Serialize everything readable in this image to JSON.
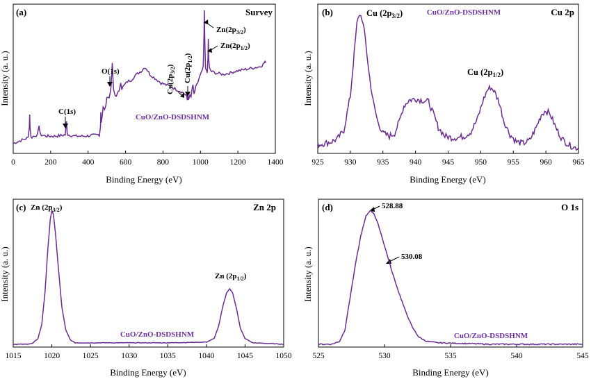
{
  "chart_data": [
    {
      "type": "line",
      "panel_label": "(a)",
      "title": "Survey",
      "sample_label": "CuO/ZnO-DSDSHNM",
      "xlabel": "Binding Energy (eV)",
      "ylabel": "Intensity (a. u.)",
      "xlim": [
        0,
        1400
      ],
      "xticks": [
        "0",
        "200",
        "400",
        "600",
        "800",
        "1000",
        "1200",
        "1400"
      ],
      "series": [
        {
          "color": "#6a2c91",
          "points": [
            [
              0,
              0.07
            ],
            [
              20,
              0.08
            ],
            [
              40,
              0.09
            ],
            [
              60,
              0.1
            ],
            [
              80,
              0.11
            ],
            [
              86,
              0.19
            ],
            [
              88,
              0.27
            ],
            [
              90,
              0.19
            ],
            [
              95,
              0.11
            ],
            [
              110,
              0.12
            ],
            [
              130,
              0.13
            ],
            [
              136,
              0.17
            ],
            [
              138,
              0.2
            ],
            [
              140,
              0.17
            ],
            [
              145,
              0.13
            ],
            [
              180,
              0.12
            ],
            [
              220,
              0.12
            ],
            [
              260,
              0.125
            ],
            [
              278,
              0.13
            ],
            [
              282,
              0.19
            ],
            [
              285,
              0.22
            ],
            [
              288,
              0.15
            ],
            [
              292,
              0.13
            ],
            [
              330,
              0.12
            ],
            [
              380,
              0.12
            ],
            [
              420,
              0.125
            ],
            [
              460,
              0.13
            ],
            [
              466,
              0.19
            ],
            [
              468,
              0.29
            ],
            [
              470,
              0.22
            ],
            [
              476,
              0.27
            ],
            [
              480,
              0.32
            ],
            [
              488,
              0.3
            ],
            [
              495,
              0.34
            ],
            [
              500,
              0.38
            ],
            [
              506,
              0.4
            ],
            [
              512,
              0.39
            ],
            [
              518,
              0.42
            ],
            [
              522,
              0.46
            ],
            [
              526,
              0.55
            ],
            [
              529,
              0.62
            ],
            [
              532,
              0.54
            ],
            [
              536,
              0.44
            ],
            [
              545,
              0.4
            ],
            [
              556,
              0.41
            ],
            [
              566,
              0.44
            ],
            [
              574,
              0.5
            ],
            [
              580,
              0.45
            ],
            [
              590,
              0.47
            ],
            [
              610,
              0.5
            ],
            [
              630,
              0.51
            ],
            [
              650,
              0.54
            ],
            [
              670,
              0.56
            ],
            [
              690,
              0.58
            ],
            [
              700,
              0.6
            ],
            [
              712,
              0.59
            ],
            [
              730,
              0.55
            ],
            [
              750,
              0.53
            ],
            [
              770,
              0.51
            ],
            [
              790,
              0.49
            ],
            [
              810,
              0.48
            ],
            [
              830,
              0.47
            ],
            [
              850,
              0.46
            ],
            [
              870,
              0.445
            ],
            [
              890,
              0.435
            ],
            [
              910,
              0.42
            ],
            [
              925,
              0.4
            ],
            [
              930,
              0.37
            ],
            [
              933,
              0.42
            ],
            [
              936,
              0.38
            ],
            [
              944,
              0.4
            ],
            [
              950,
              0.39
            ],
            [
              955,
              0.45
            ],
            [
              960,
              0.47
            ],
            [
              966,
              0.41
            ],
            [
              975,
              0.46
            ],
            [
              985,
              0.49
            ],
            [
              995,
              0.53
            ],
            [
              1005,
              0.56
            ],
            [
              1015,
              0.6
            ],
            [
              1019,
              0.82
            ],
            [
              1021,
              0.99
            ],
            [
              1023,
              0.8
            ],
            [
              1027,
              0.6
            ],
            [
              1032,
              0.57
            ],
            [
              1036,
              0.56
            ],
            [
              1040,
              0.66
            ],
            [
              1042,
              0.8
            ],
            [
              1044,
              0.66
            ],
            [
              1048,
              0.59
            ],
            [
              1060,
              0.57
            ],
            [
              1080,
              0.56
            ],
            [
              1100,
              0.555
            ],
            [
              1120,
              0.55
            ],
            [
              1140,
              0.555
            ],
            [
              1160,
              0.56
            ],
            [
              1180,
              0.57
            ],
            [
              1200,
              0.575
            ],
            [
              1220,
              0.58
            ],
            [
              1240,
              0.585
            ],
            [
              1260,
              0.59
            ],
            [
              1280,
              0.595
            ],
            [
              1300,
              0.6
            ],
            [
              1320,
              0.605
            ],
            [
              1335,
              0.62
            ],
            [
              1345,
              0.64
            ],
            [
              1350,
              0.63
            ]
          ]
        }
      ],
      "annotations": [
        {
          "text": "C(1s)",
          "x": 285
        },
        {
          "text": "O(1s)",
          "x": 530
        },
        {
          "text": "Cu(2p3/2)",
          "x": 933
        },
        {
          "text": "Cu(2p1/2)",
          "x": 953
        },
        {
          "text": "Zn(2p3/2)",
          "x": 1021
        },
        {
          "text": "Zn(2p1/2)",
          "x": 1044
        }
      ]
    },
    {
      "type": "line",
      "panel_label": "(b)",
      "title": "Cu 2p",
      "sample_label": "CuO/ZnO-DSDSHNM",
      "xlabel": "Binding Energy (eV)",
      "ylabel": "Intensity (a. u.)",
      "xlim": [
        925,
        965
      ],
      "xticks": [
        "925",
        "930",
        "935",
        "940",
        "945",
        "950",
        "955",
        "960",
        "965"
      ],
      "series": [
        {
          "color": "#6a2c91",
          "points": [
            [
              925.0,
              0.06
            ],
            [
              926.0,
              0.07
            ],
            [
              927.0,
              0.08
            ],
            [
              928.0,
              0.1
            ],
            [
              929.0,
              0.16
            ],
            [
              930.0,
              0.4
            ],
            [
              930.6,
              0.7
            ],
            [
              931.0,
              0.9
            ],
            [
              931.4,
              0.97
            ],
            [
              931.8,
              0.94
            ],
            [
              932.3,
              0.8
            ],
            [
              932.8,
              0.58
            ],
            [
              933.5,
              0.36
            ],
            [
              934.2,
              0.22
            ],
            [
              935.0,
              0.14
            ],
            [
              936.0,
              0.12
            ],
            [
              936.8,
              0.14
            ],
            [
              937.5,
              0.22
            ],
            [
              938.2,
              0.33
            ],
            [
              939.0,
              0.37
            ],
            [
              940.0,
              0.38
            ],
            [
              941.0,
              0.37
            ],
            [
              942.0,
              0.36
            ],
            [
              942.7,
              0.28
            ],
            [
              943.5,
              0.18
            ],
            [
              944.5,
              0.12
            ],
            [
              945.5,
              0.11
            ],
            [
              946.5,
              0.11
            ],
            [
              947.5,
              0.12
            ],
            [
              948.5,
              0.15
            ],
            [
              949.5,
              0.24
            ],
            [
              950.3,
              0.36
            ],
            [
              951.0,
              0.44
            ],
            [
              951.5,
              0.46
            ],
            [
              952.0,
              0.44
            ],
            [
              952.8,
              0.36
            ],
            [
              953.6,
              0.22
            ],
            [
              954.5,
              0.13
            ],
            [
              955.5,
              0.08
            ],
            [
              956.5,
              0.07
            ],
            [
              957.5,
              0.09
            ],
            [
              958.5,
              0.18
            ],
            [
              959.3,
              0.27
            ],
            [
              960.0,
              0.3
            ],
            [
              960.7,
              0.27
            ],
            [
              961.5,
              0.18
            ],
            [
              962.5,
              0.1
            ],
            [
              963.5,
              0.06
            ],
            [
              964.5,
              0.04
            ],
            [
              965.0,
              0.04
            ]
          ]
        }
      ],
      "annotations": [
        {
          "text": "Cu (2p3/2)",
          "x": 931.5
        },
        {
          "text": "Cu (2p1/2)",
          "x": 951.5
        }
      ]
    },
    {
      "type": "line",
      "panel_label": "(c)",
      "title": "Zn 2p",
      "sample_label": "CuO/ZnO-DSDSHNM",
      "xlabel": "Binding Energy (eV)",
      "ylabel": "Intensity (a. u.)",
      "xlim": [
        1015,
        1050
      ],
      "xticks": [
        "1015",
        "1020",
        "1025",
        "1030",
        "1035",
        "1040",
        "1045",
        "1050"
      ],
      "series": [
        {
          "color": "#6a2c91",
          "points": [
            [
              1015.0,
              0.02
            ],
            [
              1016.5,
              0.02
            ],
            [
              1017.5,
              0.025
            ],
            [
              1018.2,
              0.06
            ],
            [
              1018.7,
              0.16
            ],
            [
              1019.1,
              0.38
            ],
            [
              1019.5,
              0.7
            ],
            [
              1019.8,
              0.9
            ],
            [
              1020.0,
              0.96
            ],
            [
              1020.2,
              0.93
            ],
            [
              1020.5,
              0.78
            ],
            [
              1020.9,
              0.52
            ],
            [
              1021.3,
              0.28
            ],
            [
              1021.8,
              0.12
            ],
            [
              1022.4,
              0.05
            ],
            [
              1023.0,
              0.03
            ],
            [
              1025.0,
              0.03
            ],
            [
              1030.0,
              0.03
            ],
            [
              1035.0,
              0.03
            ],
            [
              1040.0,
              0.035
            ],
            [
              1041.0,
              0.06
            ],
            [
              1041.6,
              0.15
            ],
            [
              1042.1,
              0.28
            ],
            [
              1042.6,
              0.38
            ],
            [
              1043.0,
              0.41
            ],
            [
              1043.4,
              0.38
            ],
            [
              1043.9,
              0.27
            ],
            [
              1044.4,
              0.13
            ],
            [
              1045.0,
              0.06
            ],
            [
              1046.0,
              0.03
            ],
            [
              1048.0,
              0.025
            ],
            [
              1050.0,
              0.02
            ]
          ]
        }
      ],
      "annotations": [
        {
          "text": "Zn (2p3/2)",
          "x": 1020.0
        },
        {
          "text": "Zn (2p1/2)",
          "x": 1043.2
        }
      ]
    },
    {
      "type": "line",
      "panel_label": "(d)",
      "title": "O 1s",
      "sample_label": "CuO/ZnO-DSDSHNM",
      "xlabel": "Binding Energy (eV)",
      "ylabel": "Intensity (a. u.)",
      "xlim": [
        525,
        545
      ],
      "xticks": [
        "525",
        "530",
        "535",
        "540",
        "545"
      ],
      "series": [
        {
          "color": "#6a2c91",
          "points": [
            [
              525.0,
              0.02
            ],
            [
              526.0,
              0.02
            ],
            [
              526.6,
              0.04
            ],
            [
              527.0,
              0.12
            ],
            [
              527.4,
              0.35
            ],
            [
              527.8,
              0.58
            ],
            [
              528.2,
              0.78
            ],
            [
              528.6,
              0.92
            ],
            [
              528.9,
              0.96
            ],
            [
              529.2,
              0.94
            ],
            [
              529.6,
              0.84
            ],
            [
              530.1,
              0.68
            ],
            [
              530.6,
              0.52
            ],
            [
              531.1,
              0.38
            ],
            [
              531.6,
              0.25
            ],
            [
              532.1,
              0.14
            ],
            [
              532.6,
              0.07
            ],
            [
              533.2,
              0.04
            ],
            [
              534.0,
              0.03
            ],
            [
              536.0,
              0.025
            ],
            [
              538.0,
              0.02
            ],
            [
              540.0,
              0.02
            ],
            [
              542.0,
              0.02
            ],
            [
              545.0,
              0.02
            ]
          ]
        }
      ],
      "annotations": [
        {
          "text": "528.88",
          "x": 528.88
        },
        {
          "text": "530.08",
          "x": 530.08
        }
      ]
    }
  ]
}
